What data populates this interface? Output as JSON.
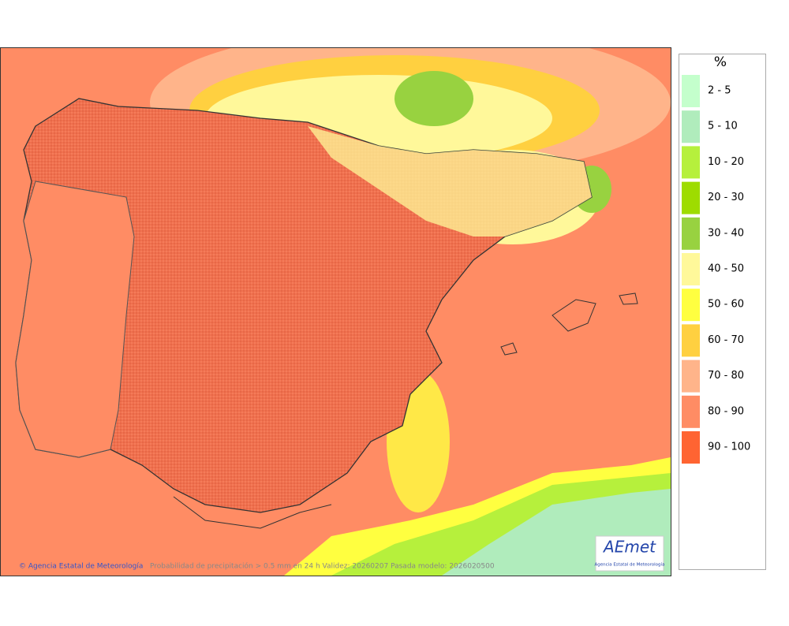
{
  "legend": {
    "unit": "%",
    "items": [
      {
        "label": "2 - 5",
        "color": "#c4ffcc"
      },
      {
        "label": "5 - 10",
        "color": "#b0ecbc"
      },
      {
        "label": "10 - 20",
        "color": "#b6f03c"
      },
      {
        "label": "20 - 30",
        "color": "#9edc00"
      },
      {
        "label": "30 - 40",
        "color": "#98d240"
      },
      {
        "label": "40 - 50",
        "color": "#fff89a"
      },
      {
        "label": "50 - 60",
        "color": "#ffff40"
      },
      {
        "label": "60 - 70",
        "color": "#ffd040"
      },
      {
        "label": "70 - 80",
        "color": "#ffb48a"
      },
      {
        "label": "80 - 90",
        "color": "#ff8c64"
      },
      {
        "label": "90 - 100",
        "color": "#ff6432"
      }
    ]
  },
  "footer": {
    "credit": "© Agencia Estatal de Meteorología",
    "caption": "Probabilidad de precipitación > 0.5 mm en 24 h Validez: 20260207 Pasada modelo: 2026020500"
  },
  "logo": {
    "name": "AEmet",
    "subtitle": "Agencia Estatal de Meteorología"
  }
}
